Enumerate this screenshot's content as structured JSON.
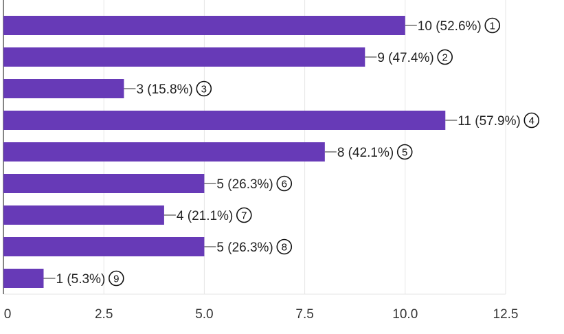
{
  "chart_data": {
    "type": "bar",
    "orientation": "horizontal",
    "title": "",
    "xlabel": "",
    "ylabel": "",
    "xlim": [
      0,
      12.5
    ],
    "x_ticks": [
      0,
      2.5,
      5.0,
      7.5,
      10.0,
      12.5
    ],
    "x_tick_labels": [
      "0",
      "2.5",
      "5.0",
      "7.5",
      "10.0",
      "12.5"
    ],
    "grid": "vertical",
    "legend": "none",
    "categories": [
      "①",
      "②",
      "③",
      "④",
      "⑤",
      "⑥",
      "⑦",
      "⑧",
      "⑨"
    ],
    "marker_numbers": [
      "1",
      "2",
      "3",
      "4",
      "5",
      "6",
      "7",
      "8",
      "9"
    ],
    "values": [
      10,
      9,
      3,
      11,
      8,
      5,
      4,
      5,
      1
    ],
    "data_labels": [
      "10 (52.6%)",
      "9 (47.4%)",
      "3 (15.8%)",
      "11 (57.9%)",
      "8 (42.1%)",
      "5 (26.3%)",
      "4 (21.1%)",
      "5 (26.3%)",
      "1 (5.3%)"
    ],
    "colors": {
      "bar": "#673ab7",
      "grid": "#e6e6e6",
      "axis": "#333333",
      "connector": "#555555"
    }
  }
}
